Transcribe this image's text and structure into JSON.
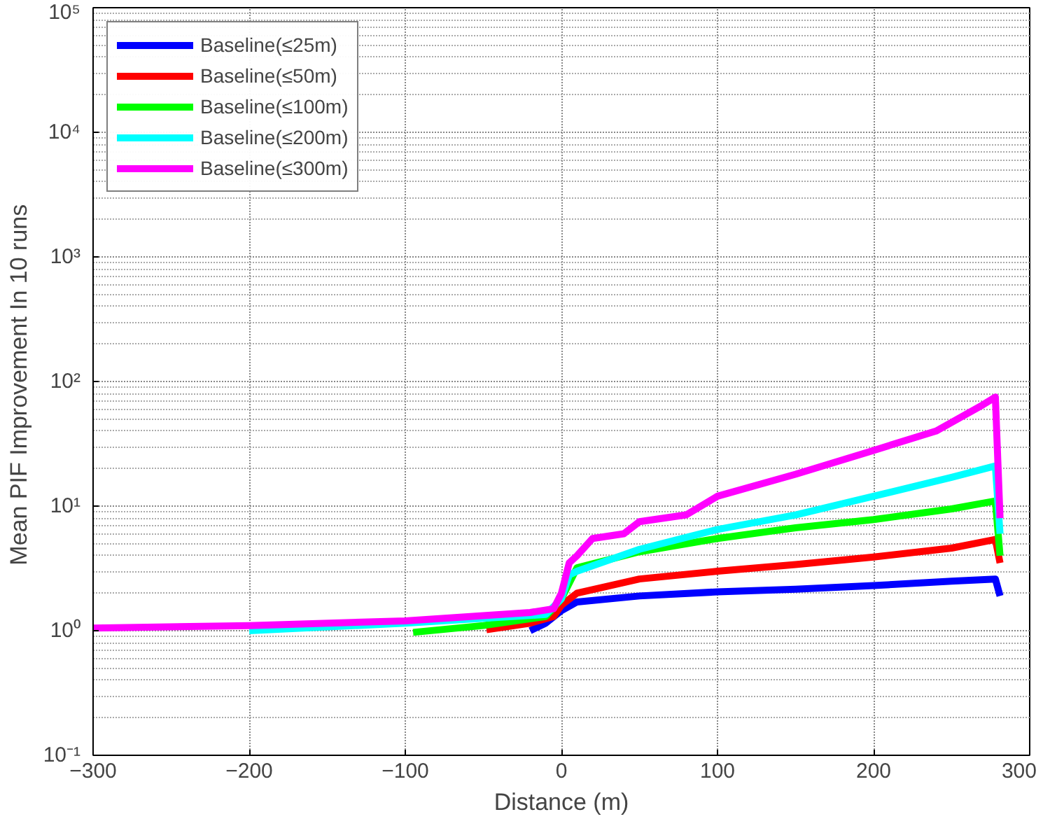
{
  "chart_data": {
    "type": "line",
    "xlabel": "Distance (m)",
    "ylabel": "Mean PIF Improvement  In 10 runs",
    "log": "y",
    "grid": true,
    "legend": "top left",
    "line_style": "solid",
    "xlim": [
      -300,
      300
    ],
    "xticks": [
      -300,
      -200,
      -100,
      0,
      100,
      200,
      300
    ],
    "ylim": [
      0.1,
      100000
    ],
    "yticks": [
      {
        "value": 0.1,
        "label": "10⁻¹"
      },
      {
        "value": 1,
        "label": "10⁰"
      },
      {
        "value": 10,
        "label": "10¹"
      },
      {
        "value": 100,
        "label": "10²"
      },
      {
        "value": 1000,
        "label": "10³"
      },
      {
        "value": 10000,
        "label": "10⁴"
      },
      {
        "value": 100000,
        "label": "10⁵"
      }
    ],
    "series": [
      {
        "name": "Baseline(≤25m)",
        "color": "#0000ff",
        "x": [
          -20,
          -10,
          0,
          10,
          50,
          100,
          150,
          200,
          250,
          278,
          281
        ],
        "values": [
          1.0,
          1.15,
          1.45,
          1.7,
          1.9,
          2.05,
          2.15,
          2.3,
          2.5,
          2.6,
          1.9
        ]
      },
      {
        "name": "Baseline(≤50m)",
        "color": "#ff0000",
        "x": [
          -48,
          -20,
          -5,
          0,
          10,
          50,
          100,
          150,
          200,
          250,
          278,
          281
        ],
        "values": [
          1.02,
          1.15,
          1.3,
          1.6,
          2.0,
          2.6,
          3.0,
          3.4,
          3.9,
          4.6,
          5.4,
          3.5
        ]
      },
      {
        "name": "Baseline(≤100m)",
        "color": "#00ff00",
        "x": [
          -95,
          -50,
          -10,
          0,
          10,
          50,
          100,
          150,
          200,
          250,
          278,
          281
        ],
        "values": [
          0.97,
          1.1,
          1.3,
          1.8,
          3.2,
          4.3,
          5.5,
          6.7,
          7.8,
          9.5,
          11,
          4
        ]
      },
      {
        "name": "Baseline(≤200m)",
        "color": "#00ffff",
        "x": [
          -200,
          -100,
          -10,
          0,
          5,
          10,
          50,
          100,
          150,
          200,
          250,
          278,
          281
        ],
        "values": [
          1.0,
          1.15,
          1.35,
          1.8,
          2.8,
          3.0,
          4.5,
          6.5,
          8.5,
          12,
          17,
          21,
          6
        ]
      },
      {
        "name": "Baseline(≤300m)",
        "color": "#ff00ff",
        "x": [
          -300,
          -200,
          -100,
          -20,
          -5,
          0,
          5,
          10,
          20,
          40,
          50,
          80,
          100,
          150,
          200,
          240,
          270,
          278,
          281
        ],
        "values": [
          1.05,
          1.1,
          1.2,
          1.4,
          1.5,
          2.0,
          3.5,
          4.0,
          5.5,
          6.0,
          7.5,
          8.5,
          12,
          18,
          28,
          40,
          65,
          75,
          8
        ]
      }
    ]
  }
}
